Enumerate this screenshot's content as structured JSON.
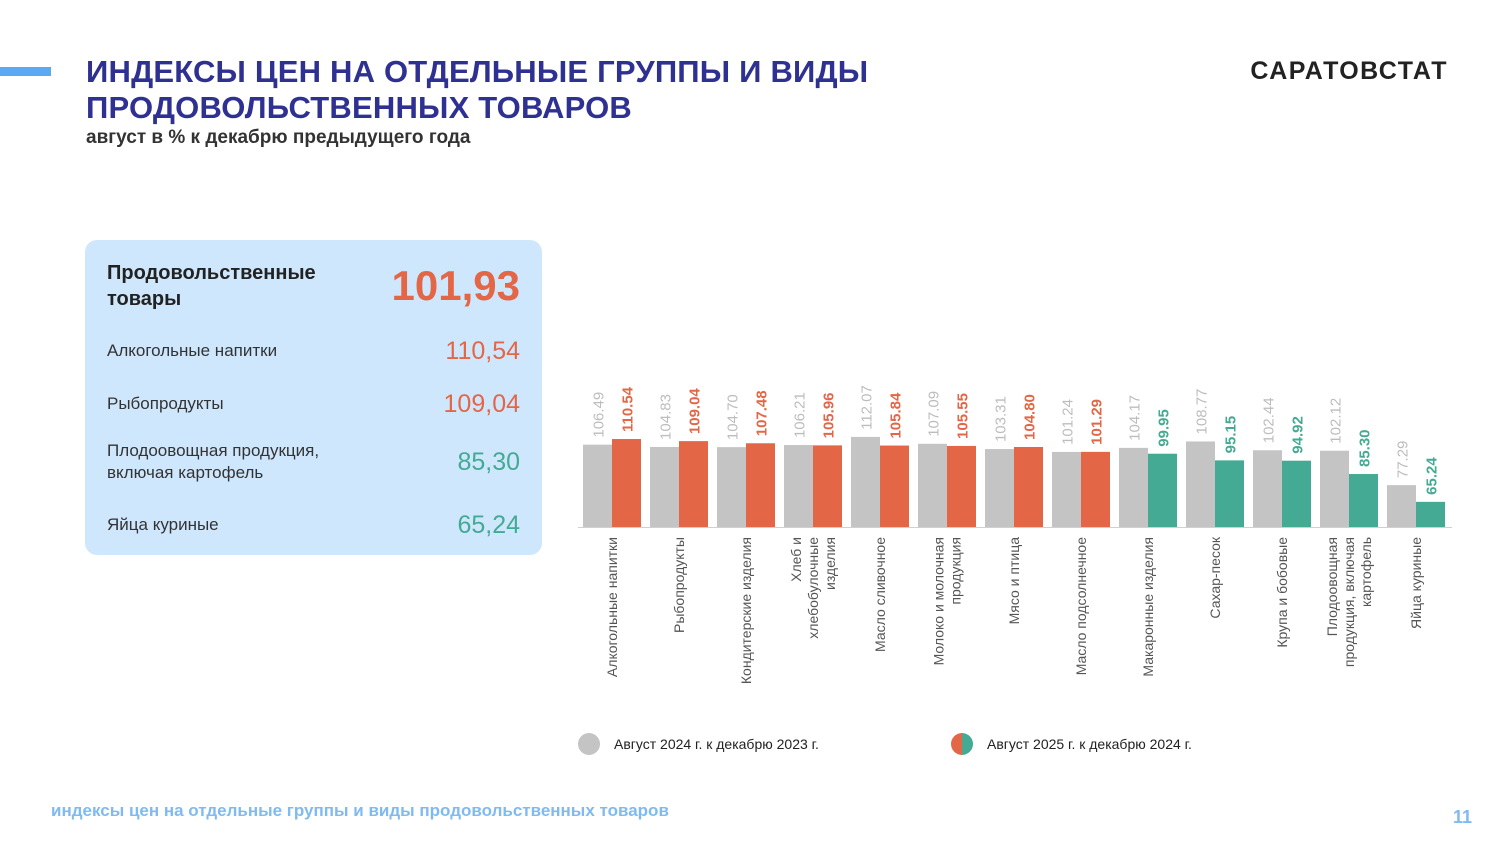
{
  "header": {
    "title": "ИНДЕКСЫ ЦЕН НА ОТДЕЛЬНЫЕ ГРУППЫ И ВИДЫ ПРОДОВОЛЬСТВЕННЫХ ТОВАРОВ",
    "subtitle": "август в % к декабрю предыдущего года",
    "brand": "САРАТОВСТАТ"
  },
  "colors": {
    "title": "#2e3192",
    "accent": "#5aa9f2",
    "panel_bg": "#cfe7fd",
    "gray": "#c4c4c4",
    "orange": "#e36747",
    "teal": "#45aa93",
    "footer": "#7fbaf0"
  },
  "panel": {
    "items": [
      {
        "label": "Продовольственные товары",
        "value": "101,93",
        "color": "#e36747"
      },
      {
        "label": "Алкогольные напитки",
        "value": "110,54",
        "color": "#e36747"
      },
      {
        "label": "Рыбопродукты",
        "value": "109,04",
        "color": "#e36747"
      },
      {
        "label": "Плодоовощная продукция, включая картофель",
        "value": "85,30",
        "color": "#45aa93"
      },
      {
        "label": "Яйца куриные",
        "value": "65,24",
        "color": "#45aa93"
      }
    ]
  },
  "chart_data": {
    "type": "bar",
    "categories": [
      "Алкогольные напитки",
      "Рыбопродукты",
      "Кондитерские изделия",
      "Хлеб и хлебобулочные изделия",
      "Масло сливочное",
      "Молоко и молочная продукция",
      "Мясо и птица",
      "Масло подсолнечное",
      "Макаронные изделия",
      "Сахар-песок",
      "Крупа и бобовые",
      "Плодоовощная продукция, включая картофель",
      "Яйца куриные"
    ],
    "series": [
      {
        "name": "Август 2024 г. к декабрю  2023 г.",
        "values": [
          106.49,
          104.83,
          104.7,
          106.21,
          112.07,
          107.09,
          103.31,
          101.24,
          104.17,
          108.77,
          102.44,
          102.12,
          77.29
        ],
        "labels": [
          "106.49",
          "104.83",
          "104.70",
          "106.21",
          "112.07",
          "107.09",
          "103.31",
          "101.24",
          "104.17",
          "108.77",
          "102.44",
          "102.12",
          "77.29"
        ],
        "color": "#c4c4c4"
      },
      {
        "name": "Август  2025 г. к декабрю  2024 г.",
        "values": [
          110.54,
          109.04,
          107.48,
          105.96,
          105.84,
          105.55,
          104.8,
          101.29,
          99.95,
          95.15,
          94.92,
          85.3,
          65.24
        ],
        "labels": [
          "110.54",
          "109.04",
          "107.48",
          "105.96",
          "105.84",
          "105.55",
          "104.80",
          "101.29",
          "99.95",
          "95.15",
          "94.92",
          "85.30",
          "65.24"
        ],
        "colors": [
          "#e36747",
          "#e36747",
          "#e36747",
          "#e36747",
          "#e36747",
          "#e36747",
          "#e36747",
          "#e36747",
          "#45aa93",
          "#45aa93",
          "#45aa93",
          "#45aa93",
          "#45aa93"
        ]
      }
    ],
    "legend_position": "bottom",
    "grid": false
  },
  "footer": {
    "text": "индексы цен на отдельные группы и виды продовольственных товаров",
    "page": "11"
  }
}
